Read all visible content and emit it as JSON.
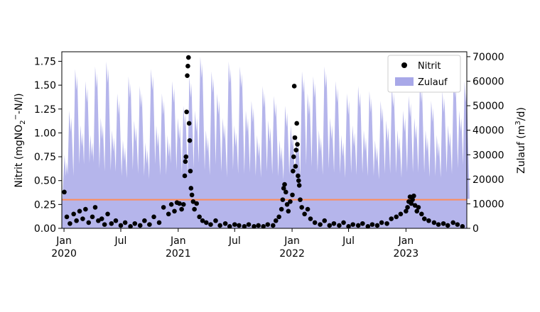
{
  "chart_data": {
    "type": "scatter+area",
    "x_axis": {
      "type": "date",
      "range": [
        "2019-12-25",
        "2023-07-15"
      ],
      "ticks": [
        {
          "date": "2020-01-01",
          "line1": "Jan",
          "line2": "2020"
        },
        {
          "date": "2020-07-01",
          "line1": "Jul",
          "line2": ""
        },
        {
          "date": "2021-01-01",
          "line1": "Jan",
          "line2": "2021"
        },
        {
          "date": "2021-07-01",
          "line1": "Jul",
          "line2": ""
        },
        {
          "date": "2022-01-01",
          "line1": "Jan",
          "line2": "2022"
        },
        {
          "date": "2022-07-01",
          "line1": "Jul",
          "line2": ""
        },
        {
          "date": "2023-01-01",
          "line1": "Jan",
          "line2": "2023"
        }
      ]
    },
    "y_left": {
      "label_main": "Nitrit (mgNO",
      "label_sub": "2",
      "label_sup": "−",
      "label_rest": "-N/l)",
      "range": [
        0,
        1.85
      ],
      "ticks": [
        "0.00",
        "0.25",
        "0.50",
        "0.75",
        "1.00",
        "1.25",
        "1.50",
        "1.75"
      ]
    },
    "y_right": {
      "label_main": "Zulauf (m",
      "label_sup": "3",
      "label_rest": "/d)",
      "range": [
        0,
        72000
      ],
      "ticks": [
        "0",
        "10000",
        "20000",
        "30000",
        "40000",
        "50000",
        "60000",
        "70000"
      ]
    },
    "threshold": {
      "value": 0.3,
      "axis": "left",
      "color": "#ff8c5a"
    },
    "legend": {
      "placement": "top-right",
      "entries": [
        {
          "name": "Nitrit",
          "marker": "dot"
        },
        {
          "name": "Zulauf",
          "marker": "patch"
        }
      ]
    },
    "series": [
      {
        "name": "Nitrit",
        "axis": "left",
        "color": "#000000",
        "points": [
          [
            "2020-01-02",
            0.38
          ],
          [
            "2020-01-10",
            0.12
          ],
          [
            "2020-01-20",
            0.05
          ],
          [
            "2020-02-01",
            0.15
          ],
          [
            "2020-02-10",
            0.08
          ],
          [
            "2020-02-20",
            0.18
          ],
          [
            "2020-03-01",
            0.1
          ],
          [
            "2020-03-10",
            0.2
          ],
          [
            "2020-03-20",
            0.06
          ],
          [
            "2020-04-01",
            0.12
          ],
          [
            "2020-04-10",
            0.22
          ],
          [
            "2020-04-20",
            0.08
          ],
          [
            "2020-05-01",
            0.1
          ],
          [
            "2020-05-10",
            0.04
          ],
          [
            "2020-05-20",
            0.15
          ],
          [
            "2020-06-01",
            0.05
          ],
          [
            "2020-06-15",
            0.08
          ],
          [
            "2020-07-01",
            0.03
          ],
          [
            "2020-07-15",
            0.06
          ],
          [
            "2020-08-01",
            0.02
          ],
          [
            "2020-08-15",
            0.05
          ],
          [
            "2020-09-01",
            0.03
          ],
          [
            "2020-09-15",
            0.08
          ],
          [
            "2020-10-01",
            0.04
          ],
          [
            "2020-10-15",
            0.12
          ],
          [
            "2020-11-01",
            0.06
          ],
          [
            "2020-11-15",
            0.22
          ],
          [
            "2020-12-01",
            0.15
          ],
          [
            "2020-12-10",
            0.25
          ],
          [
            "2020-12-20",
            0.18
          ],
          [
            "2020-12-28",
            0.27
          ],
          [
            "2021-01-05",
            0.26
          ],
          [
            "2021-01-12",
            0.2
          ],
          [
            "2021-01-18",
            0.25
          ],
          [
            "2021-01-22",
            0.55
          ],
          [
            "2021-01-24",
            0.7
          ],
          [
            "2021-01-26",
            0.75
          ],
          [
            "2021-01-28",
            1.22
          ],
          [
            "2021-01-30",
            1.6
          ],
          [
            "2021-02-01",
            1.7
          ],
          [
            "2021-02-03",
            1.79
          ],
          [
            "2021-02-05",
            1.1
          ],
          [
            "2021-02-07",
            0.92
          ],
          [
            "2021-02-09",
            0.6
          ],
          [
            "2021-02-11",
            0.42
          ],
          [
            "2021-02-14",
            0.35
          ],
          [
            "2021-02-18",
            0.28
          ],
          [
            "2021-02-22",
            0.2
          ],
          [
            "2021-03-01",
            0.26
          ],
          [
            "2021-03-10",
            0.12
          ],
          [
            "2021-03-20",
            0.08
          ],
          [
            "2021-04-01",
            0.06
          ],
          [
            "2021-04-15",
            0.04
          ],
          [
            "2021-05-01",
            0.08
          ],
          [
            "2021-05-15",
            0.03
          ],
          [
            "2021-06-01",
            0.05
          ],
          [
            "2021-06-15",
            0.02
          ],
          [
            "2021-07-01",
            0.04
          ],
          [
            "2021-07-15",
            0.03
          ],
          [
            "2021-08-01",
            0.02
          ],
          [
            "2021-08-15",
            0.04
          ],
          [
            "2021-09-01",
            0.02
          ],
          [
            "2021-09-15",
            0.03
          ],
          [
            "2021-10-01",
            0.02
          ],
          [
            "2021-10-15",
            0.04
          ],
          [
            "2021-11-01",
            0.03
          ],
          [
            "2021-11-10",
            0.08
          ],
          [
            "2021-11-20",
            0.12
          ],
          [
            "2021-11-28",
            0.2
          ],
          [
            "2021-12-02",
            0.3
          ],
          [
            "2021-12-05",
            0.42
          ],
          [
            "2021-12-08",
            0.46
          ],
          [
            "2021-12-12",
            0.38
          ],
          [
            "2021-12-16",
            0.25
          ],
          [
            "2021-12-20",
            0.18
          ],
          [
            "2021-12-26",
            0.28
          ],
          [
            "2022-01-02",
            0.35
          ],
          [
            "2022-01-04",
            0.6
          ],
          [
            "2022-01-06",
            0.75
          ],
          [
            "2022-01-08",
            1.49
          ],
          [
            "2022-01-10",
            0.95
          ],
          [
            "2022-01-12",
            0.65
          ],
          [
            "2022-01-14",
            0.82
          ],
          [
            "2022-01-16",
            1.1
          ],
          [
            "2022-01-18",
            0.88
          ],
          [
            "2022-01-20",
            0.55
          ],
          [
            "2022-01-22",
            0.5
          ],
          [
            "2022-01-24",
            0.45
          ],
          [
            "2022-01-27",
            0.3
          ],
          [
            "2022-02-01",
            0.22
          ],
          [
            "2022-02-10",
            0.15
          ],
          [
            "2022-02-20",
            0.2
          ],
          [
            "2022-03-01",
            0.1
          ],
          [
            "2022-03-15",
            0.06
          ],
          [
            "2022-04-01",
            0.04
          ],
          [
            "2022-04-15",
            0.08
          ],
          [
            "2022-05-01",
            0.03
          ],
          [
            "2022-05-15",
            0.05
          ],
          [
            "2022-06-01",
            0.03
          ],
          [
            "2022-06-15",
            0.06
          ],
          [
            "2022-07-01",
            0.02
          ],
          [
            "2022-07-15",
            0.04
          ],
          [
            "2022-08-01",
            0.03
          ],
          [
            "2022-08-15",
            0.05
          ],
          [
            "2022-09-01",
            0.02
          ],
          [
            "2022-09-15",
            0.04
          ],
          [
            "2022-10-01",
            0.03
          ],
          [
            "2022-10-15",
            0.06
          ],
          [
            "2022-11-01",
            0.05
          ],
          [
            "2022-11-15",
            0.1
          ],
          [
            "2022-12-01",
            0.12
          ],
          [
            "2022-12-15",
            0.15
          ],
          [
            "2023-01-01",
            0.18
          ],
          [
            "2023-01-06",
            0.22
          ],
          [
            "2023-01-10",
            0.28
          ],
          [
            "2023-01-14",
            0.33
          ],
          [
            "2023-01-18",
            0.26
          ],
          [
            "2023-01-22",
            0.3
          ],
          [
            "2023-01-26",
            0.34
          ],
          [
            "2023-01-30",
            0.24
          ],
          [
            "2023-02-05",
            0.18
          ],
          [
            "2023-02-10",
            0.22
          ],
          [
            "2023-02-20",
            0.15
          ],
          [
            "2023-03-01",
            0.1
          ],
          [
            "2023-03-15",
            0.08
          ],
          [
            "2023-04-01",
            0.06
          ],
          [
            "2023-04-15",
            0.04
          ],
          [
            "2023-05-01",
            0.05
          ],
          [
            "2023-05-15",
            0.03
          ],
          [
            "2023-06-01",
            0.06
          ],
          [
            "2023-06-15",
            0.04
          ],
          [
            "2023-07-01",
            0.02
          ]
        ]
      },
      {
        "name": "Zulauf",
        "axis": "right",
        "color": "#a8a8e8",
        "peaks": [
          [
            "2020-01-05",
            30000
          ],
          [
            "2020-01-20",
            48000
          ],
          [
            "2020-02-08",
            65000
          ],
          [
            "2020-02-25",
            42000
          ],
          [
            "2020-03-12",
            60000
          ],
          [
            "2020-03-28",
            38000
          ],
          [
            "2020-04-12",
            66000
          ],
          [
            "2020-04-30",
            45000
          ],
          [
            "2020-05-18",
            68000
          ],
          [
            "2020-06-05",
            40000
          ],
          [
            "2020-06-22",
            55000
          ],
          [
            "2020-07-10",
            36000
          ],
          [
            "2020-07-28",
            62000
          ],
          [
            "2020-08-15",
            44000
          ],
          [
            "2020-09-02",
            58000
          ],
          [
            "2020-09-20",
            35000
          ],
          [
            "2020-10-08",
            65000
          ],
          [
            "2020-10-25",
            42000
          ],
          [
            "2020-11-12",
            55000
          ],
          [
            "2020-11-30",
            38000
          ],
          [
            "2020-12-15",
            60000
          ],
          [
            "2021-01-02",
            45000
          ],
          [
            "2021-01-20",
            50000
          ],
          [
            "2021-02-08",
            62000
          ],
          [
            "2021-02-26",
            48000
          ],
          [
            "2021-03-15",
            70000
          ],
          [
            "2021-04-02",
            40000
          ],
          [
            "2021-04-20",
            64000
          ],
          [
            "2021-05-08",
            55000
          ],
          [
            "2021-05-26",
            45000
          ],
          [
            "2021-06-14",
            68000
          ],
          [
            "2021-07-02",
            42000
          ],
          [
            "2021-07-20",
            66000
          ],
          [
            "2021-08-08",
            48000
          ],
          [
            "2021-08-26",
            52000
          ],
          [
            "2021-09-13",
            38000
          ],
          [
            "2021-10-01",
            58000
          ],
          [
            "2021-10-19",
            44000
          ],
          [
            "2021-11-06",
            54000
          ],
          [
            "2021-11-24",
            36000
          ],
          [
            "2021-12-12",
            50000
          ],
          [
            "2021-12-30",
            42000
          ],
          [
            "2022-01-17",
            38000
          ],
          [
            "2022-02-04",
            64000
          ],
          [
            "2022-02-22",
            55000
          ],
          [
            "2022-03-12",
            62000
          ],
          [
            "2022-03-30",
            40000
          ],
          [
            "2022-04-17",
            66000
          ],
          [
            "2022-05-05",
            45000
          ],
          [
            "2022-05-23",
            60000
          ],
          [
            "2022-06-10",
            38000
          ],
          [
            "2022-06-28",
            55000
          ],
          [
            "2022-07-16",
            42000
          ],
          [
            "2022-08-03",
            58000
          ],
          [
            "2022-08-21",
            40000
          ],
          [
            "2022-09-08",
            56000
          ],
          [
            "2022-09-26",
            36000
          ],
          [
            "2022-10-14",
            52000
          ],
          [
            "2022-11-01",
            44000
          ],
          [
            "2022-11-19",
            58000
          ],
          [
            "2022-12-07",
            40000
          ],
          [
            "2022-12-25",
            48000
          ],
          [
            "2023-01-12",
            54000
          ],
          [
            "2023-01-30",
            45000
          ],
          [
            "2023-02-17",
            60000
          ],
          [
            "2023-03-07",
            40000
          ],
          [
            "2023-03-25",
            52000
          ],
          [
            "2023-04-12",
            38000
          ],
          [
            "2023-04-30",
            56000
          ],
          [
            "2023-05-18",
            42000
          ],
          [
            "2023-06-05",
            62000
          ],
          [
            "2023-06-23",
            48000
          ],
          [
            "2023-07-10",
            60000
          ]
        ],
        "baseline": 12000
      }
    ]
  }
}
